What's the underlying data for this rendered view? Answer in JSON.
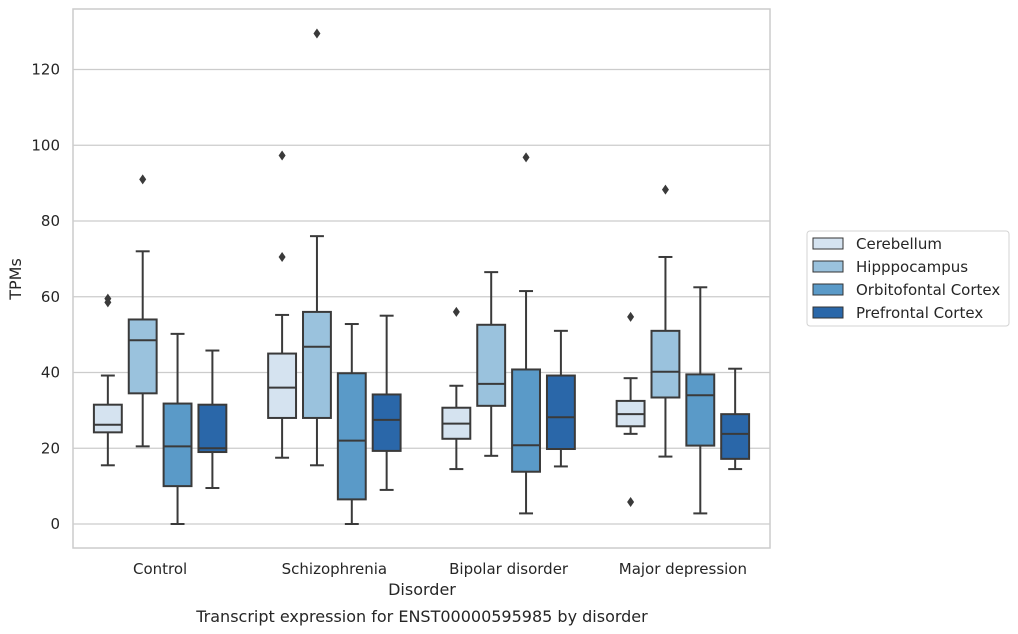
{
  "chart_data": {
    "type": "box",
    "title": "",
    "caption": "Transcript expression for ENST00000595985 by disorder",
    "xlabel": "Disorder",
    "ylabel": "TPMs",
    "ylim": [
      -6,
      136
    ],
    "yticks": [
      0,
      20,
      40,
      60,
      80,
      100,
      120
    ],
    "grid": "horizontal",
    "legend_position": "right",
    "categories": [
      "Control",
      "Schizophrenia",
      "Bipolar disorder",
      "Major depression"
    ],
    "series": [
      {
        "name": "Cerebellum",
        "color": "#d5e3f0",
        "boxes": [
          {
            "whisker_low": 15.5,
            "q1": 24.2,
            "median": 26.2,
            "q3": 31.5,
            "whisker_high": 39.2,
            "outliers": [
              58.5,
              59.5
            ]
          },
          {
            "whisker_low": 17.5,
            "q1": 28.0,
            "median": 36.0,
            "q3": 45.0,
            "whisker_high": 55.2,
            "outliers": [
              70.5,
              97.3
            ]
          },
          {
            "whisker_low": 14.5,
            "q1": 22.5,
            "median": 26.5,
            "q3": 30.7,
            "whisker_high": 36.5,
            "outliers": [
              56.0
            ]
          },
          {
            "whisker_low": 23.8,
            "q1": 25.8,
            "median": 29.0,
            "q3": 32.5,
            "whisker_high": 38.5,
            "outliers": [
              5.8,
              54.7
            ]
          }
        ]
      },
      {
        "name": "Hipppocampus",
        "color": "#9ac2dd",
        "boxes": [
          {
            "whisker_low": 20.5,
            "q1": 34.5,
            "median": 48.5,
            "q3": 54.0,
            "whisker_high": 72.0,
            "outliers": [
              91.0
            ]
          },
          {
            "whisker_low": 15.5,
            "q1": 28.0,
            "median": 46.8,
            "q3": 56.0,
            "whisker_high": 76.0,
            "outliers": [
              129.5
            ]
          },
          {
            "whisker_low": 18.0,
            "q1": 31.2,
            "median": 37.0,
            "q3": 52.6,
            "whisker_high": 66.5,
            "outliers": []
          },
          {
            "whisker_low": 17.8,
            "q1": 33.4,
            "median": 40.2,
            "q3": 51.0,
            "whisker_high": 70.5,
            "outliers": [
              88.3
            ]
          }
        ]
      },
      {
        "name": "Orbitofontal Cortex",
        "color": "#5a9ac8",
        "boxes": [
          {
            "whisker_low": 0.0,
            "q1": 10.0,
            "median": 20.5,
            "q3": 31.8,
            "whisker_high": 50.2,
            "outliers": []
          },
          {
            "whisker_low": 0.0,
            "q1": 6.5,
            "median": 22.0,
            "q3": 39.8,
            "whisker_high": 52.8,
            "outliers": []
          },
          {
            "whisker_low": 2.8,
            "q1": 13.8,
            "median": 20.8,
            "q3": 40.8,
            "whisker_high": 61.5,
            "outliers": [
              96.8
            ]
          },
          {
            "whisker_low": 2.8,
            "q1": 20.7,
            "median": 34.0,
            "q3": 39.5,
            "whisker_high": 62.5,
            "outliers": []
          }
        ]
      },
      {
        "name": "Prefrontal Cortex",
        "color": "#2a67a9",
        "boxes": [
          {
            "whisker_low": 9.5,
            "q1": 19.0,
            "median": 20.0,
            "q3": 31.5,
            "whisker_high": 45.8,
            "outliers": []
          },
          {
            "whisker_low": 9.0,
            "q1": 19.3,
            "median": 27.5,
            "q3": 34.2,
            "whisker_high": 55.0,
            "outliers": []
          },
          {
            "whisker_low": 15.2,
            "q1": 19.8,
            "median": 28.2,
            "q3": 39.2,
            "whisker_high": 51.0,
            "outliers": []
          },
          {
            "whisker_low": 14.5,
            "q1": 17.2,
            "median": 23.8,
            "q3": 29.0,
            "whisker_high": 41.0,
            "outliers": []
          }
        ]
      }
    ]
  }
}
